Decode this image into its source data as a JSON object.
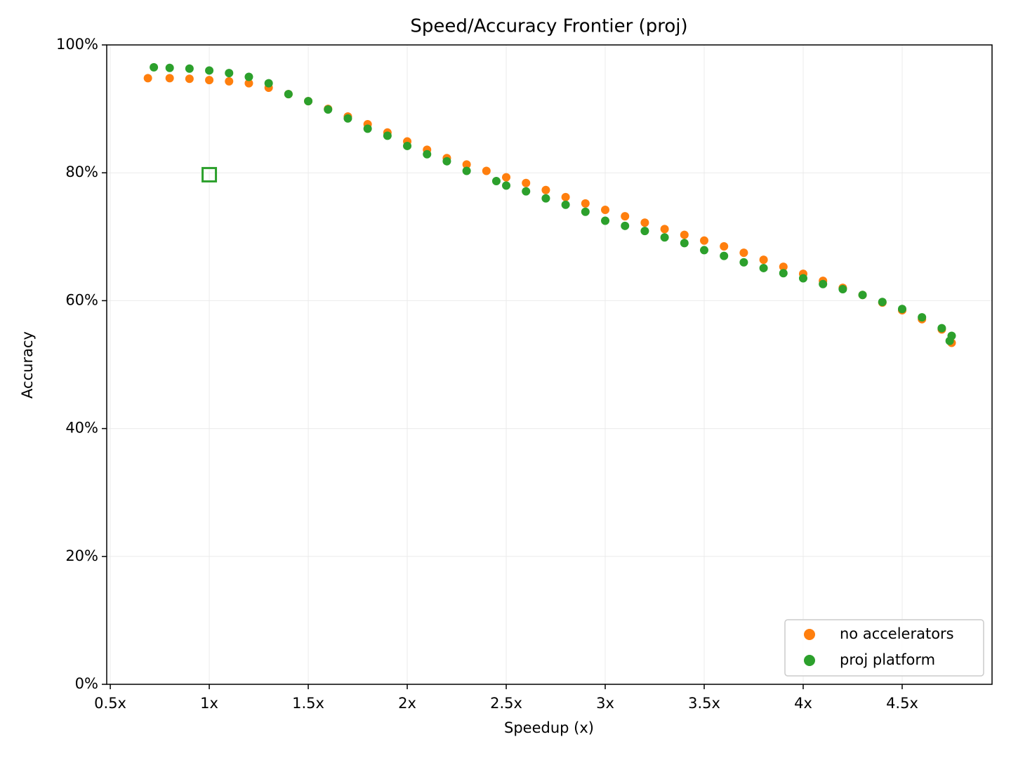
{
  "chart_data": {
    "type": "scatter",
    "title": "Speed/Accuracy Frontier (proj)",
    "x_label": "Speedup (x)",
    "y_label": "Accuracy",
    "xlim": [
      0.482,
      4.954
    ],
    "ylim": [
      0,
      100
    ],
    "xticks": [
      {
        "value": 0.5,
        "label": "0.5x"
      },
      {
        "value": 1,
        "label": "1x"
      },
      {
        "value": 1.5,
        "label": "1.5x"
      },
      {
        "value": 2,
        "label": "2x"
      },
      {
        "value": 2.5,
        "label": "2.5x"
      },
      {
        "value": 3,
        "label": "3x"
      },
      {
        "value": 3.5,
        "label": "3.5x"
      },
      {
        "value": 4,
        "label": "4x"
      },
      {
        "value": 4.5,
        "label": "4.5x"
      }
    ],
    "yticks": [
      {
        "value": 0,
        "label": "0%"
      },
      {
        "value": 20,
        "label": "20%"
      },
      {
        "value": 40,
        "label": "40%"
      },
      {
        "value": 60,
        "label": "60%"
      },
      {
        "value": 80,
        "label": "80%"
      },
      {
        "value": 100,
        "label": "100%"
      }
    ],
    "grid": true,
    "legend": "lower right",
    "series": [
      {
        "name": "no accelerators",
        "color": "#ff7f0e",
        "x": [
          0.69,
          0.8,
          0.9,
          1.0,
          1.1,
          1.2,
          1.3,
          1.4,
          1.5,
          1.6,
          1.7,
          1.8,
          1.9,
          2.0,
          2.1,
          2.2,
          2.3,
          2.4,
          2.5,
          2.6,
          2.7,
          2.8,
          2.9,
          3.0,
          3.1,
          3.2,
          3.3,
          3.4,
          3.5,
          3.6,
          3.7,
          3.8,
          3.9,
          4.0,
          4.1,
          4.2,
          4.3,
          4.4,
          4.5,
          4.6,
          4.7,
          4.75
        ],
        "values": [
          94.8,
          94.8,
          94.7,
          94.5,
          94.3,
          94.0,
          93.3,
          92.3,
          91.2,
          90.0,
          88.8,
          87.6,
          86.3,
          84.9,
          83.6,
          82.3,
          81.3,
          80.3,
          79.3,
          78.4,
          77.3,
          76.2,
          75.2,
          74.2,
          73.2,
          72.2,
          71.2,
          70.3,
          69.4,
          68.5,
          67.5,
          66.4,
          65.3,
          64.2,
          63.1,
          62.0,
          60.9,
          59.7,
          58.5,
          57.1,
          55.5,
          53.4
        ]
      },
      {
        "name": "proj platform",
        "color": "#2ca02c",
        "x": [
          0.72,
          0.8,
          0.9,
          1.0,
          1.1,
          1.2,
          1.3,
          1.4,
          1.5,
          1.6,
          1.7,
          1.8,
          1.9,
          2.0,
          2.1,
          2.2,
          2.3,
          2.45,
          2.5,
          2.6,
          2.7,
          2.8,
          2.9,
          3.0,
          3.1,
          3.2,
          3.3,
          3.4,
          3.5,
          3.6,
          3.7,
          3.8,
          3.9,
          4.0,
          4.1,
          4.2,
          4.3,
          4.4,
          4.5,
          4.6,
          4.7,
          4.75,
          4.74
        ],
        "values": [
          96.5,
          96.4,
          96.3,
          96.0,
          95.6,
          95.0,
          94.0,
          92.3,
          91.2,
          89.9,
          88.5,
          86.9,
          85.8,
          84.2,
          82.9,
          81.8,
          80.3,
          78.7,
          78.0,
          77.1,
          76.0,
          75.0,
          73.9,
          72.5,
          71.7,
          70.9,
          69.9,
          69.0,
          67.9,
          67.0,
          66.0,
          65.1,
          64.3,
          63.5,
          62.6,
          61.8,
          60.9,
          59.8,
          58.7,
          57.4,
          55.7,
          54.5,
          53.7
        ]
      }
    ],
    "baseline": {
      "x": 1,
      "y": 79.7,
      "color": "#2ca02c"
    }
  }
}
